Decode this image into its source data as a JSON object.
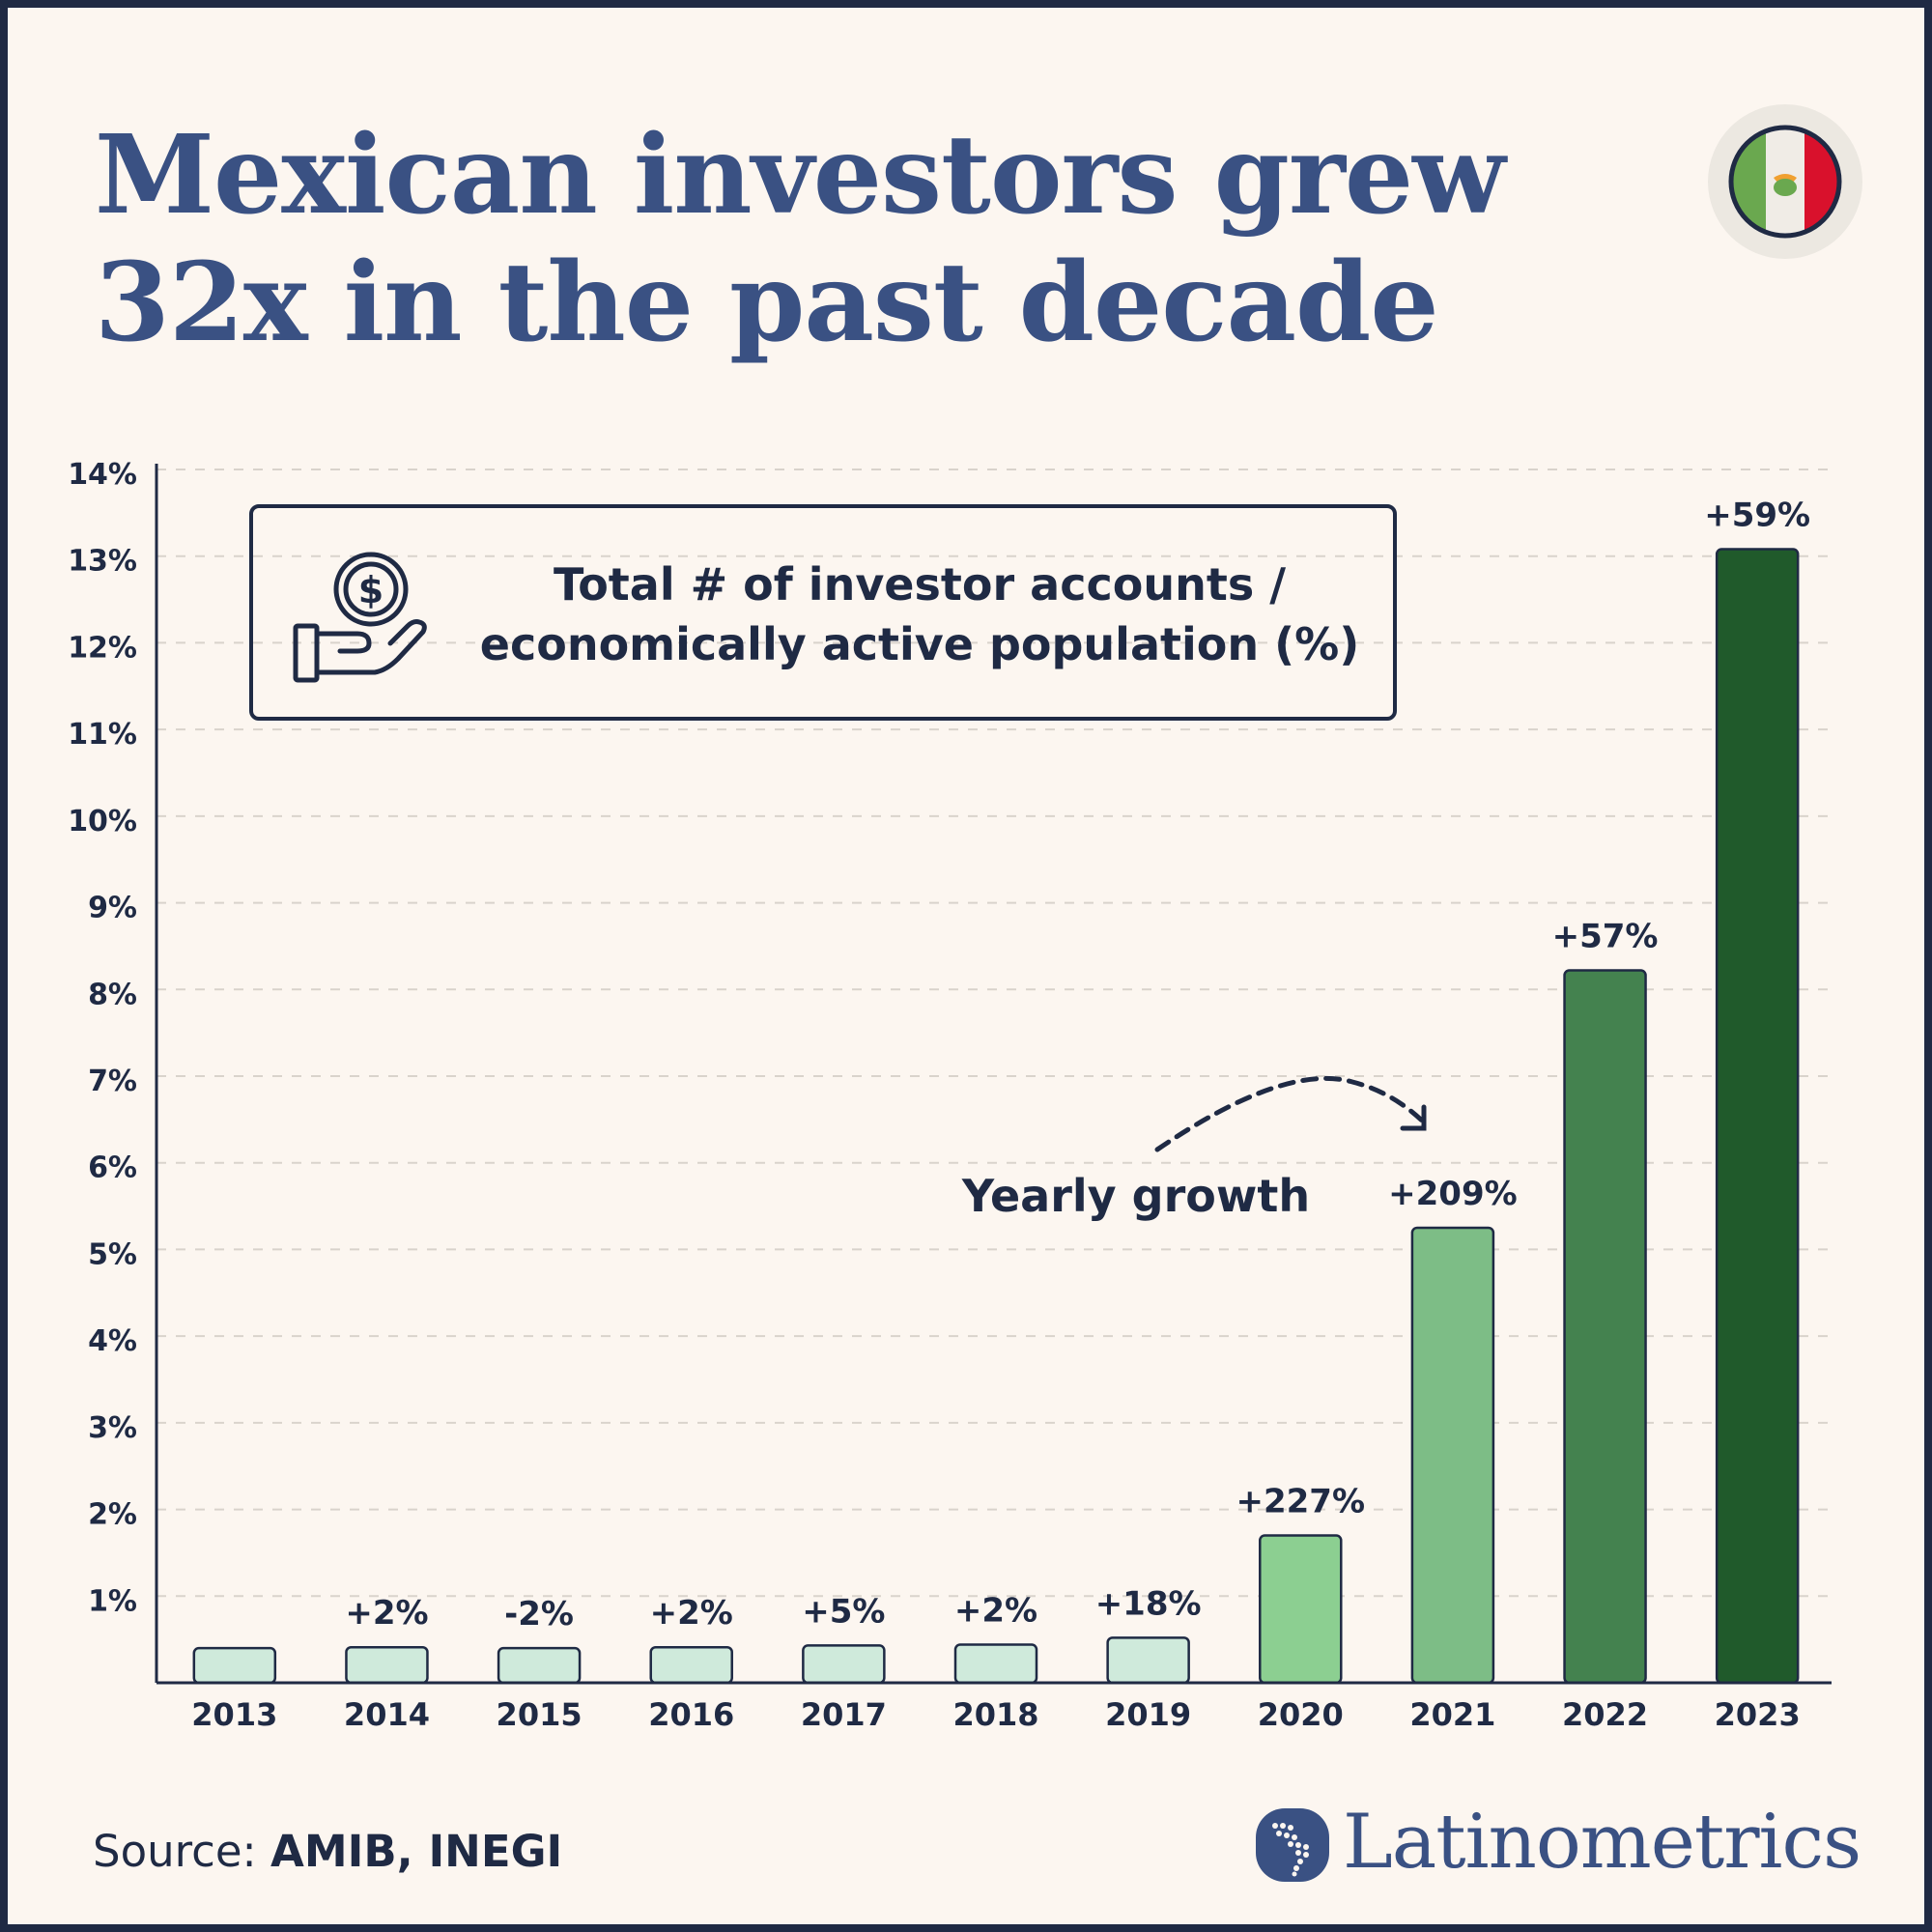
{
  "header": {
    "title_line1": "Mexican investors grew",
    "title_line2": "32x in the past decade"
  },
  "flag": {
    "name": "mexico-flag-icon",
    "colors": [
      "#6aa84f",
      "#f0ece6",
      "#d9112c"
    ]
  },
  "legend": {
    "icon": "coin-hand-icon",
    "line1": "Total # of investor accounts /",
    "line2": "economically active population (%)"
  },
  "annotation": {
    "label": "Yearly growth"
  },
  "footer": {
    "source_prefix": "Source: ",
    "source_names": "AMIB, INEGI",
    "brand": "Latinometrics"
  },
  "chart_data": {
    "type": "bar",
    "categories": [
      "2013",
      "2014",
      "2015",
      "2016",
      "2017",
      "2018",
      "2019",
      "2020",
      "2021",
      "2022",
      "2023"
    ],
    "values": [
      0.4,
      0.41,
      0.4,
      0.41,
      0.43,
      0.44,
      0.52,
      1.7,
      5.25,
      8.22,
      13.08
    ],
    "growth_labels": [
      "",
      "+2%",
      "-2%",
      "+2%",
      "+5%",
      "+2%",
      "+18%",
      "+227%",
      "+209%",
      "+57%",
      "+59%"
    ],
    "bar_colors": [
      "#cfeadb",
      "#cfeadb",
      "#cfeadb",
      "#cfeadb",
      "#cfeadb",
      "#cfeadb",
      "#cfeadb",
      "#8ccf91",
      "#7dbd86",
      "#44824f",
      "#205a2b"
    ],
    "ylim": [
      0,
      14
    ],
    "yticks": [
      1,
      2,
      3,
      4,
      5,
      6,
      7,
      8,
      9,
      10,
      11,
      12,
      13,
      14
    ],
    "ytick_labels": [
      "1%",
      "2%",
      "3%",
      "4%",
      "5%",
      "6%",
      "7%",
      "8%",
      "9%",
      "10%",
      "11%",
      "12%",
      "13%",
      "14%"
    ],
    "grid": true
  }
}
